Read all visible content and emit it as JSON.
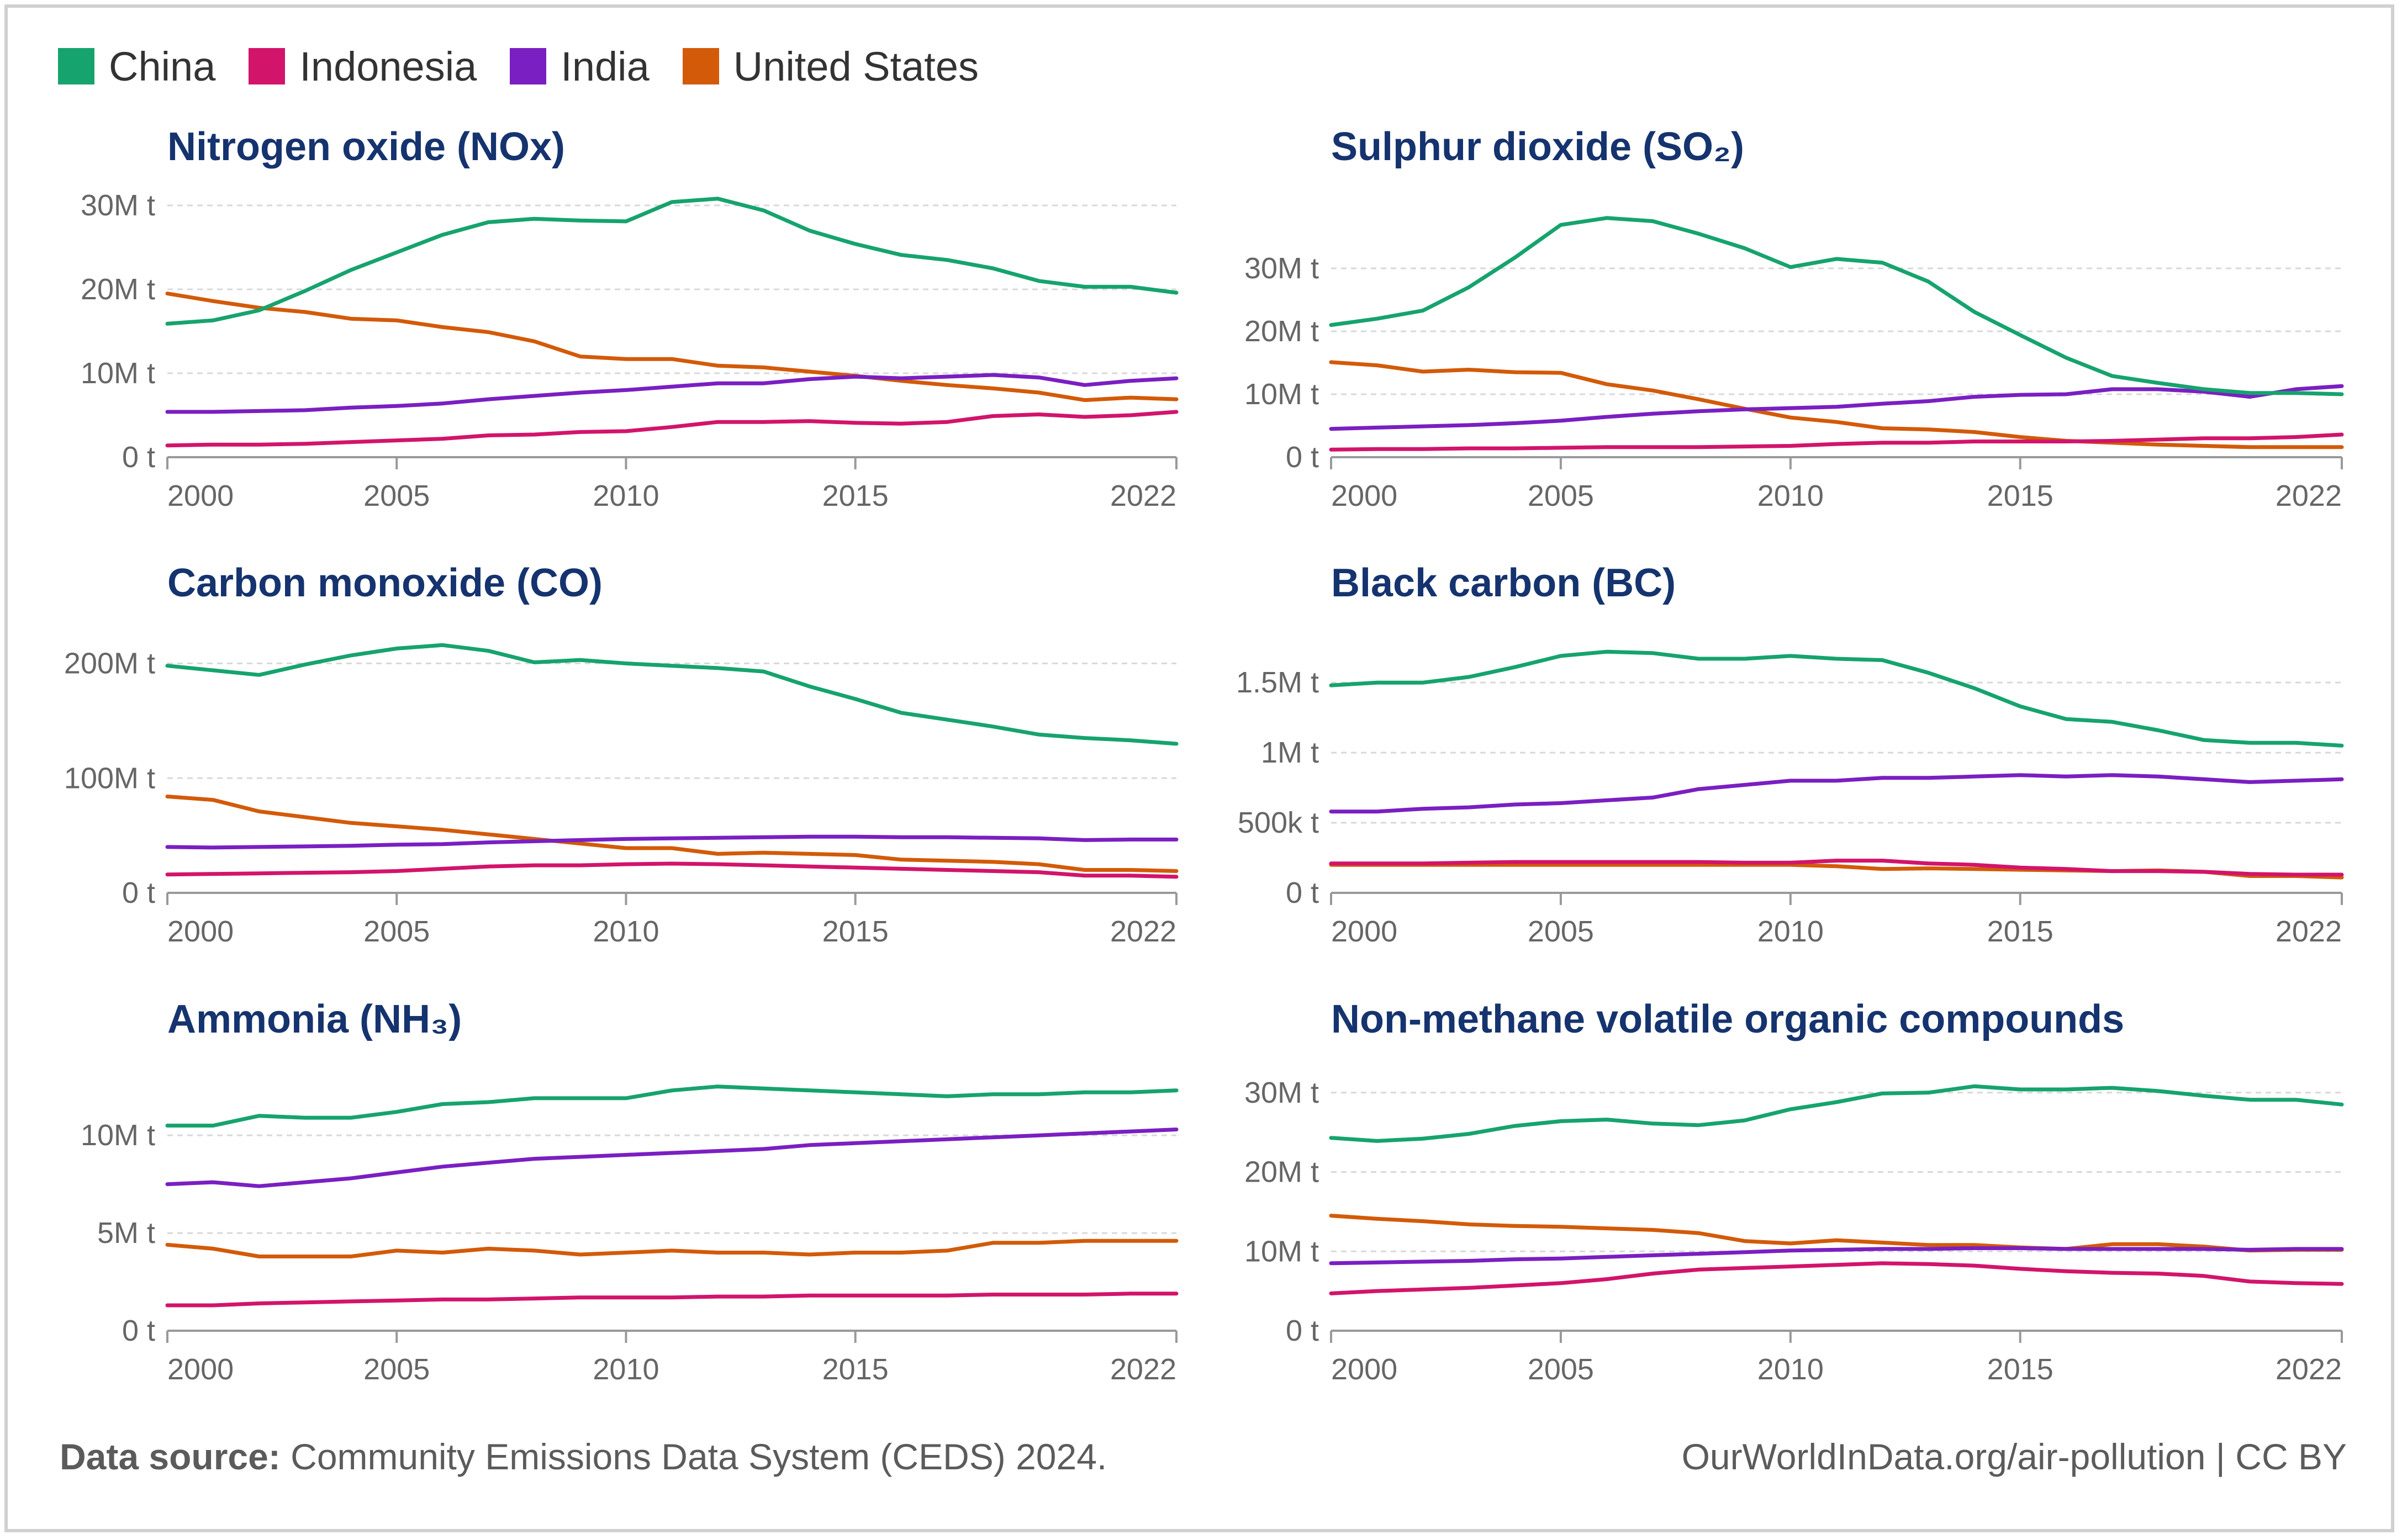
{
  "legend": [
    {
      "name": "China",
      "color": "#16a36e"
    },
    {
      "name": "Indonesia",
      "color": "#d2146b"
    },
    {
      "name": "India",
      "color": "#7a1fc2"
    },
    {
      "name": "United States",
      "color": "#d35a08"
    }
  ],
  "footer": {
    "source_label": "Data source:",
    "source_text": "Community Emissions Data System (CEDS) 2024.",
    "credit": "OurWorldInData.org/air-pollution | CC BY"
  },
  "chart_data": [
    {
      "type": "line",
      "title": "Nitrogen oxide (NOx)",
      "x": [
        2000,
        2001,
        2002,
        2003,
        2004,
        2005,
        2006,
        2007,
        2008,
        2009,
        2010,
        2011,
        2012,
        2013,
        2014,
        2015,
        2016,
        2017,
        2018,
        2019,
        2020,
        2021,
        2022
      ],
      "xlim": [
        2000,
        2022
      ],
      "ylim": [
        0,
        30
      ],
      "xticks": [
        "2000",
        "2005",
        "2010",
        "2015",
        "2022"
      ],
      "yticks": [
        {
          "v": 0,
          "label": "0 t"
        },
        {
          "v": 10,
          "label": "10M t"
        },
        {
          "v": 20,
          "label": "20M t"
        },
        {
          "v": 30,
          "label": "30M t"
        }
      ],
      "series": [
        {
          "name": "China",
          "values": [
            15.9,
            16.3,
            17.5,
            19.8,
            22.3,
            24.4,
            26.5,
            28.0,
            28.4,
            28.2,
            28.1,
            30.4,
            30.8,
            29.4,
            27.0,
            25.4,
            24.1,
            23.5,
            22.5,
            21.0,
            20.3,
            20.3,
            19.6
          ]
        },
        {
          "name": "Indonesia",
          "values": [
            1.4,
            1.5,
            1.5,
            1.6,
            1.8,
            2.0,
            2.2,
            2.6,
            2.7,
            3.0,
            3.1,
            3.6,
            4.2,
            4.2,
            4.3,
            4.1,
            4.0,
            4.2,
            4.9,
            5.1,
            4.8,
            5.0,
            5.4
          ]
        },
        {
          "name": "India",
          "values": [
            5.4,
            5.4,
            5.5,
            5.6,
            5.9,
            6.1,
            6.4,
            6.9,
            7.3,
            7.7,
            8.0,
            8.4,
            8.8,
            8.8,
            9.3,
            9.6,
            9.4,
            9.6,
            9.8,
            9.5,
            8.6,
            9.1,
            9.4
          ]
        },
        {
          "name": "United States",
          "values": [
            19.5,
            18.6,
            17.8,
            17.3,
            16.5,
            16.3,
            15.5,
            14.9,
            13.8,
            12.0,
            11.7,
            11.7,
            10.9,
            10.7,
            10.2,
            9.7,
            9.1,
            8.6,
            8.2,
            7.7,
            6.8,
            7.1,
            6.9
          ]
        }
      ]
    },
    {
      "type": "line",
      "title": "Sulphur dioxide (SO₂)",
      "x": [
        2000,
        2001,
        2002,
        2003,
        2004,
        2005,
        2006,
        2007,
        2008,
        2009,
        2010,
        2011,
        2012,
        2013,
        2014,
        2015,
        2016,
        2017,
        2018,
        2019,
        2020,
        2021,
        2022
      ],
      "xlim": [
        2000,
        2022
      ],
      "ylim": [
        0,
        40
      ],
      "xticks": [
        "2000",
        "2005",
        "2010",
        "2015",
        "2022"
      ],
      "yticks": [
        {
          "v": 0,
          "label": "0 t"
        },
        {
          "v": 10,
          "label": "10M t"
        },
        {
          "v": 20,
          "label": "20M t"
        },
        {
          "v": 30,
          "label": "30M t"
        }
      ],
      "series": [
        {
          "name": "China",
          "values": [
            21.0,
            22.0,
            23.3,
            27.0,
            31.7,
            36.9,
            38.0,
            37.5,
            35.5,
            33.2,
            30.2,
            31.5,
            30.9,
            27.9,
            23.1,
            19.4,
            15.8,
            12.9,
            11.8,
            10.8,
            10.2,
            10.2,
            10.0
          ]
        },
        {
          "name": "Indonesia",
          "values": [
            1.2,
            1.3,
            1.3,
            1.4,
            1.4,
            1.5,
            1.6,
            1.6,
            1.6,
            1.7,
            1.8,
            2.1,
            2.3,
            2.3,
            2.5,
            2.5,
            2.5,
            2.6,
            2.8,
            3.0,
            3.0,
            3.2,
            3.6
          ]
        },
        {
          "name": "India",
          "values": [
            4.5,
            4.7,
            4.9,
            5.1,
            5.4,
            5.8,
            6.4,
            6.9,
            7.3,
            7.6,
            7.8,
            8.0,
            8.5,
            8.9,
            9.6,
            9.9,
            10.0,
            10.8,
            10.8,
            10.4,
            9.6,
            10.8,
            11.3
          ]
        },
        {
          "name": "United States",
          "values": [
            15.1,
            14.6,
            13.6,
            13.9,
            13.5,
            13.4,
            11.6,
            10.6,
            9.2,
            7.7,
            6.3,
            5.6,
            4.6,
            4.4,
            4.0,
            3.2,
            2.6,
            2.3,
            2.0,
            1.8,
            1.6,
            1.6,
            1.6
          ]
        }
      ]
    },
    {
      "type": "line",
      "title": "Carbon monoxide (CO)",
      "x": [
        2000,
        2001,
        2002,
        2003,
        2004,
        2005,
        2006,
        2007,
        2008,
        2009,
        2010,
        2011,
        2012,
        2013,
        2014,
        2015,
        2016,
        2017,
        2018,
        2019,
        2020,
        2021,
        2022
      ],
      "xlim": [
        2000,
        2022
      ],
      "ylim": [
        0,
        220
      ],
      "xticks": [
        "2000",
        "2005",
        "2010",
        "2015",
        "2022"
      ],
      "yticks": [
        {
          "v": 0,
          "label": "0 t"
        },
        {
          "v": 100,
          "label": "100M t"
        },
        {
          "v": 200,
          "label": "200M t"
        }
      ],
      "series": [
        {
          "name": "China",
          "values": [
            198,
            194,
            190,
            199,
            207,
            213,
            216,
            211,
            201,
            203,
            200,
            198,
            196,
            193,
            180,
            169,
            157,
            151,
            145,
            138,
            135,
            133,
            130
          ]
        },
        {
          "name": "Indonesia",
          "values": [
            16,
            16.5,
            17,
            17.5,
            18,
            19,
            21,
            23,
            24,
            24,
            25,
            25.5,
            25,
            24,
            23,
            22,
            21,
            20,
            19,
            18,
            15,
            15,
            14
          ]
        },
        {
          "name": "India",
          "values": [
            40,
            39.5,
            40,
            40.5,
            41,
            42,
            42.5,
            44,
            45,
            46,
            47,
            47.5,
            48,
            48.5,
            49,
            49,
            48.5,
            48.5,
            48,
            47.5,
            46,
            46.5,
            46.5
          ]
        },
        {
          "name": "United States",
          "values": [
            84,
            81,
            71,
            66,
            61,
            58,
            55,
            51,
            47,
            43,
            39,
            39,
            34,
            35,
            34,
            33,
            29,
            28,
            27,
            25,
            20,
            20,
            19
          ]
        }
      ]
    },
    {
      "type": "line",
      "title": "Black carbon (BC)",
      "x": [
        2000,
        2001,
        2002,
        2003,
        2004,
        2005,
        2006,
        2007,
        2008,
        2009,
        2010,
        2011,
        2012,
        2013,
        2014,
        2015,
        2016,
        2017,
        2018,
        2019,
        2020,
        2021,
        2022
      ],
      "xlim": [
        2000,
        2022
      ],
      "ylim": [
        0,
        1.8
      ],
      "xticks": [
        "2000",
        "2005",
        "2010",
        "2015",
        "2022"
      ],
      "yticks": [
        {
          "v": 0,
          "label": "0 t"
        },
        {
          "v": 0.5,
          "label": "500k t"
        },
        {
          "v": 1.0,
          "label": "1M t"
        },
        {
          "v": 1.5,
          "label": "1.5M t"
        }
      ],
      "series": [
        {
          "name": "China",
          "values": [
            1.48,
            1.5,
            1.5,
            1.54,
            1.61,
            1.69,
            1.72,
            1.71,
            1.67,
            1.67,
            1.69,
            1.67,
            1.66,
            1.57,
            1.46,
            1.33,
            1.24,
            1.22,
            1.16,
            1.09,
            1.07,
            1.07,
            1.05
          ]
        },
        {
          "name": "Indonesia",
          "values": [
            0.21,
            0.21,
            0.21,
            0.215,
            0.22,
            0.22,
            0.22,
            0.22,
            0.22,
            0.215,
            0.215,
            0.23,
            0.23,
            0.21,
            0.2,
            0.18,
            0.17,
            0.155,
            0.155,
            0.15,
            0.135,
            0.13,
            0.13
          ]
        },
        {
          "name": "India",
          "values": [
            0.58,
            0.58,
            0.6,
            0.61,
            0.63,
            0.64,
            0.66,
            0.68,
            0.74,
            0.77,
            0.8,
            0.8,
            0.82,
            0.82,
            0.83,
            0.84,
            0.83,
            0.84,
            0.83,
            0.81,
            0.79,
            0.8,
            0.81
          ]
        },
        {
          "name": "United States",
          "values": [
            0.2,
            0.2,
            0.2,
            0.2,
            0.2,
            0.2,
            0.2,
            0.2,
            0.2,
            0.2,
            0.2,
            0.19,
            0.17,
            0.175,
            0.17,
            0.165,
            0.16,
            0.155,
            0.16,
            0.15,
            0.12,
            0.12,
            0.11
          ]
        }
      ]
    },
    {
      "type": "line",
      "title": "Ammonia (NH₃)",
      "x": [
        2000,
        2001,
        2002,
        2003,
        2004,
        2005,
        2006,
        2007,
        2008,
        2009,
        2010,
        2011,
        2012,
        2013,
        2014,
        2015,
        2016,
        2017,
        2018,
        2019,
        2020,
        2021,
        2022
      ],
      "xlim": [
        2000,
        2022
      ],
      "ylim": [
        0,
        13
      ],
      "xticks": [
        "2000",
        "2005",
        "2010",
        "2015",
        "2022"
      ],
      "yticks": [
        {
          "v": 0,
          "label": "0 t"
        },
        {
          "v": 5,
          "label": "5M t"
        },
        {
          "v": 10,
          "label": "10M t"
        }
      ],
      "series": [
        {
          "name": "China",
          "values": [
            10.5,
            10.5,
            11.0,
            10.9,
            10.9,
            11.2,
            11.6,
            11.7,
            11.9,
            11.9,
            11.9,
            12.3,
            12.5,
            12.4,
            12.3,
            12.2,
            12.1,
            12.0,
            12.1,
            12.1,
            12.2,
            12.2,
            12.3
          ]
        },
        {
          "name": "Indonesia",
          "values": [
            1.3,
            1.3,
            1.4,
            1.45,
            1.5,
            1.55,
            1.6,
            1.6,
            1.65,
            1.7,
            1.7,
            1.7,
            1.75,
            1.75,
            1.8,
            1.8,
            1.8,
            1.8,
            1.85,
            1.85,
            1.85,
            1.9,
            1.9
          ]
        },
        {
          "name": "India",
          "values": [
            7.5,
            7.6,
            7.4,
            7.6,
            7.8,
            8.1,
            8.4,
            8.6,
            8.8,
            8.9,
            9.0,
            9.1,
            9.2,
            9.3,
            9.5,
            9.6,
            9.7,
            9.8,
            9.9,
            10.0,
            10.1,
            10.2,
            10.3
          ]
        },
        {
          "name": "United States",
          "values": [
            4.4,
            4.2,
            3.8,
            3.8,
            3.8,
            4.1,
            4.0,
            4.2,
            4.1,
            3.9,
            4.0,
            4.1,
            4.0,
            4.0,
            3.9,
            4.0,
            4.0,
            4.1,
            4.5,
            4.5,
            4.6,
            4.6,
            4.6
          ]
        }
      ]
    },
    {
      "type": "line",
      "title": "Non-methane volatile organic compounds",
      "x": [
        2000,
        2001,
        2002,
        2003,
        2004,
        2005,
        2006,
        2007,
        2008,
        2009,
        2010,
        2011,
        2012,
        2013,
        2014,
        2015,
        2016,
        2017,
        2018,
        2019,
        2020,
        2021,
        2022
      ],
      "xlim": [
        2000,
        2022
      ],
      "ylim": [
        0,
        32
      ],
      "xticks": [
        "2000",
        "2005",
        "2010",
        "2015",
        "2022"
      ],
      "yticks": [
        {
          "v": 0,
          "label": "0 t"
        },
        {
          "v": 10,
          "label": "10M t"
        },
        {
          "v": 20,
          "label": "20M t"
        },
        {
          "v": 30,
          "label": "30M t"
        }
      ],
      "series": [
        {
          "name": "China",
          "values": [
            24.3,
            23.9,
            24.2,
            24.8,
            25.8,
            26.4,
            26.6,
            26.1,
            25.9,
            26.5,
            27.9,
            28.8,
            29.9,
            30.0,
            30.8,
            30.4,
            30.4,
            30.6,
            30.2,
            29.6,
            29.1,
            29.1,
            28.5
          ]
        },
        {
          "name": "Indonesia",
          "values": [
            4.7,
            5.0,
            5.2,
            5.4,
            5.7,
            6.0,
            6.5,
            7.2,
            7.7,
            7.9,
            8.1,
            8.3,
            8.5,
            8.4,
            8.2,
            7.8,
            7.5,
            7.3,
            7.2,
            6.9,
            6.2,
            6.0,
            5.9
          ]
        },
        {
          "name": "India",
          "values": [
            8.5,
            8.6,
            8.7,
            8.8,
            9.0,
            9.1,
            9.3,
            9.5,
            9.7,
            9.9,
            10.1,
            10.2,
            10.3,
            10.3,
            10.4,
            10.4,
            10.3,
            10.3,
            10.3,
            10.3,
            10.2,
            10.3,
            10.3
          ]
        },
        {
          "name": "United States",
          "values": [
            14.5,
            14.1,
            13.8,
            13.4,
            13.2,
            13.1,
            12.9,
            12.7,
            12.3,
            11.3,
            11.0,
            11.4,
            11.1,
            10.8,
            10.8,
            10.5,
            10.3,
            10.9,
            10.9,
            10.6,
            10.1,
            10.2,
            10.2
          ]
        }
      ]
    }
  ]
}
